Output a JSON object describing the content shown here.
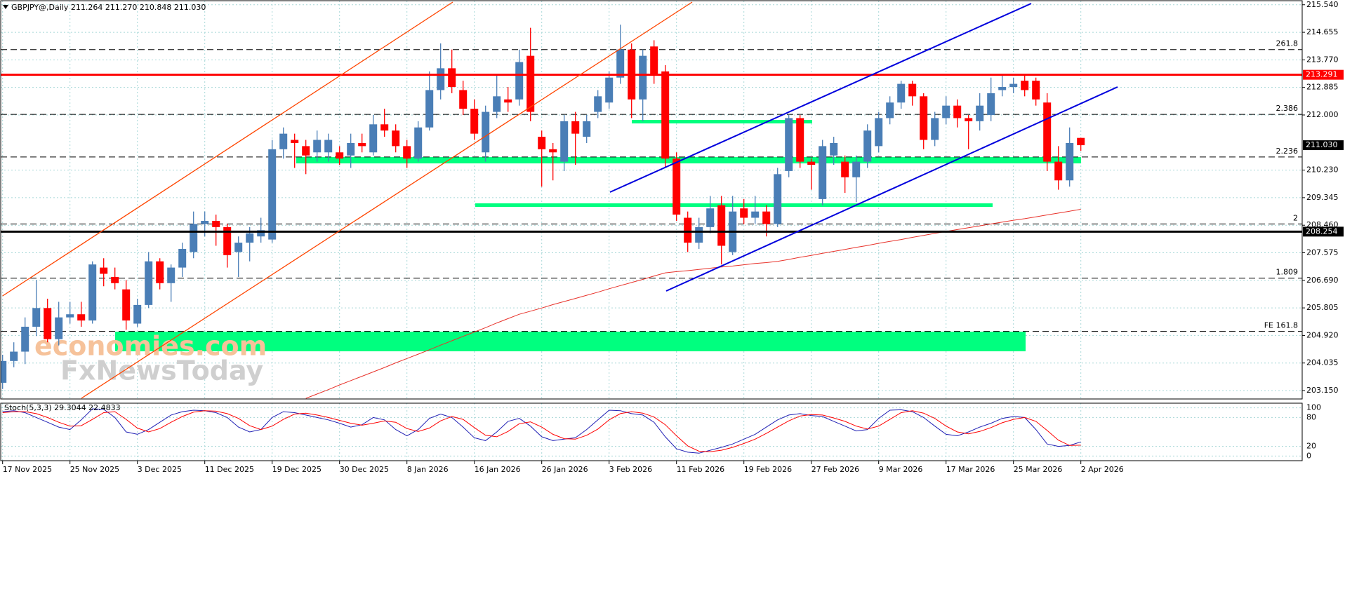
{
  "chart_data": {
    "type": "candlestick",
    "legend_text": "GBPJPY@,Daily  211.264 211.270 210.848 211.030",
    "categories": [
      "17 Nov 2025",
      null,
      null,
      null,
      null,
      null,
      "25 Nov 2025",
      null,
      null,
      null,
      null,
      null,
      "3 Dec 2025",
      null,
      null,
      null,
      null,
      null,
      "11 Dec 2025",
      null,
      null,
      null,
      null,
      null,
      "19 Dec 2025",
      null,
      null,
      null,
      null,
      null,
      "30 Dec 2025",
      null,
      null,
      null,
      null,
      null,
      "8 Jan 2026",
      null,
      null,
      null,
      null,
      null,
      "16 Jan 2026",
      null,
      null,
      null,
      null,
      null,
      "26 Jan 2026",
      null,
      null,
      null,
      null,
      null,
      "3 Feb 2026",
      null,
      null,
      null,
      null,
      null,
      "11 Feb 2026",
      null,
      null,
      null,
      null,
      null,
      "19 Feb 2026",
      null,
      null,
      null,
      null,
      null,
      "27 Feb 2026",
      null,
      null,
      null,
      null,
      null,
      "9 Mar 2026",
      null,
      null,
      null,
      null,
      null,
      "17 Mar 2026",
      null,
      null,
      null,
      null,
      null,
      "25 Mar 2026",
      null,
      null,
      null,
      null,
      null,
      "2 Apr 2026"
    ],
    "open": [
      203.4,
      204.1,
      204.4,
      205.2,
      205.8,
      204.8,
      205.5,
      205.6,
      205.4,
      207.1,
      206.8,
      206.4,
      205.3,
      205.9,
      207.3,
      206.6,
      207.1,
      207.6,
      208.5,
      208.6,
      208.4,
      207.6,
      207.9,
      208.1,
      208.0,
      210.9,
      211.2,
      211.0,
      210.8,
      210.8,
      210.8,
      210.7,
      211.1,
      210.8,
      211.7,
      211.5,
      211.0,
      210.6,
      211.6,
      212.8,
      213.5,
      212.8,
      212.2,
      210.8,
      212.1,
      212.5,
      212.5,
      213.9,
      211.3,
      210.9,
      210.5,
      211.8,
      211.3,
      212.1,
      212.4,
      213.2,
      214.1,
      212.5,
      214.2,
      213.4,
      210.6,
      208.7,
      207.9,
      208.4,
      209.1,
      207.6,
      209.0,
      208.7,
      208.9,
      208.5,
      210.2,
      211.9,
      210.5,
      209.3,
      210.7,
      210.5,
      210.0,
      210.5,
      211.0,
      211.9,
      212.4,
      213.0,
      212.6,
      211.2,
      211.9,
      212.3,
      211.9,
      211.8,
      212.0,
      212.8,
      212.9,
      213.1,
      213.1,
      212.4,
      210.5,
      209.9,
      211.264
    ],
    "high": [
      204.3,
      204.7,
      205.5,
      206.7,
      206.1,
      206.0,
      206.0,
      206.0,
      207.3,
      207.4,
      207.1,
      206.7,
      206.1,
      207.6,
      207.4,
      207.2,
      207.9,
      208.9,
      208.9,
      208.8,
      208.5,
      208.1,
      208.4,
      208.7,
      211.2,
      211.6,
      211.4,
      211.2,
      211.5,
      211.4,
      211.0,
      211.4,
      211.4,
      212.0,
      212.2,
      211.7,
      211.2,
      211.8,
      213.4,
      214.3,
      214.1,
      213.1,
      212.5,
      212.3,
      213.3,
      212.9,
      214.1,
      214.8,
      211.5,
      211.1,
      212.0,
      212.1,
      212.0,
      212.8,
      213.4,
      214.9,
      214.3,
      214.1,
      214.4,
      213.6,
      210.8,
      208.9,
      208.7,
      209.4,
      209.4,
      209.4,
      209.3,
      209.4,
      209.1,
      210.3,
      212.0,
      212.0,
      210.6,
      211.2,
      211.3,
      210.7,
      210.7,
      211.7,
      212.1,
      212.6,
      213.1,
      213.1,
      212.7,
      212.1,
      212.6,
      212.5,
      212.0,
      212.7,
      213.2,
      213.3,
      213.2,
      213.3,
      213.2,
      212.7,
      211.0,
      211.6,
      211.27
    ],
    "low": [
      203.2,
      203.9,
      204.0,
      204.9,
      204.7,
      204.6,
      205.3,
      205.2,
      205.3,
      206.5,
      206.4,
      205.1,
      205.2,
      205.8,
      206.4,
      206.0,
      206.8,
      207.4,
      208.1,
      207.8,
      207.1,
      206.8,
      207.3,
      207.9,
      207.9,
      210.6,
      210.3,
      210.1,
      210.5,
      210.5,
      210.4,
      210.3,
      210.8,
      210.7,
      211.3,
      210.8,
      210.3,
      210.5,
      211.5,
      212.5,
      212.7,
      212.0,
      211.2,
      210.5,
      211.9,
      212.1,
      212.3,
      211.8,
      209.7,
      209.9,
      210.2,
      210.4,
      211.1,
      211.9,
      212.2,
      213.0,
      211.9,
      211.8,
      213.0,
      210.3,
      208.6,
      207.6,
      207.7,
      208.2,
      207.2,
      207.5,
      208.5,
      208.5,
      208.1,
      208.4,
      210.0,
      210.3,
      209.6,
      209.1,
      210.4,
      209.5,
      209.2,
      210.3,
      210.8,
      211.7,
      212.2,
      212.3,
      210.9,
      211.0,
      211.7,
      211.6,
      210.9,
      211.5,
      211.8,
      212.6,
      212.7,
      212.6,
      212.3,
      210.2,
      209.6,
      209.7,
      210.848
    ],
    "close": [
      204.1,
      204.4,
      205.2,
      205.8,
      204.8,
      205.5,
      205.6,
      205.4,
      207.2,
      206.9,
      206.6,
      205.4,
      205.9,
      207.3,
      206.6,
      207.1,
      207.7,
      208.5,
      208.6,
      208.4,
      207.5,
      207.9,
      208.2,
      208.3,
      210.9,
      211.4,
      211.1,
      210.7,
      211.2,
      211.2,
      210.6,
      211.1,
      211.0,
      211.7,
      211.5,
      211.0,
      210.6,
      211.6,
      212.8,
      213.5,
      212.9,
      212.2,
      211.4,
      212.1,
      212.6,
      212.4,
      213.7,
      212.1,
      210.9,
      210.8,
      211.8,
      211.4,
      211.8,
      212.6,
      213.2,
      214.1,
      212.5,
      213.9,
      213.3,
      210.6,
      208.8,
      207.9,
      208.4,
      209.0,
      207.8,
      208.9,
      208.7,
      208.9,
      208.5,
      210.1,
      211.9,
      210.5,
      210.4,
      211.0,
      211.1,
      210.0,
      210.5,
      211.5,
      211.9,
      212.4,
      213.0,
      212.6,
      211.2,
      211.9,
      212.3,
      211.9,
      211.8,
      212.3,
      212.7,
      212.9,
      213.0,
      212.8,
      212.5,
      210.5,
      209.9,
      211.1,
      211.03
    ],
    "up_color": "#4a7eb6",
    "down_color": "#ff0000",
    "ylim": [
      202.88,
      215.67
    ],
    "yticks": [
      {
        "value": 215.54,
        "label": "215.540"
      },
      214.655,
      {
        "value": 213.77,
        "label": "213.770"
      },
      212.885,
      {
        "value": 212,
        "label": "212.000"
      },
      {
        "value": 210.23,
        "label": "210.230"
      },
      209.345,
      {
        "value": 208.46,
        "label": "208.460"
      },
      207.575,
      {
        "value": 206.69,
        "label": "206.690"
      },
      205.805,
      {
        "value": 204.92,
        "label": "204.920"
      },
      204.035,
      {
        "value": 203.15,
        "label": "203.150"
      }
    ],
    "grid": true,
    "ma": {
      "color": "#e8322a",
      "values": [
        null,
        null,
        null,
        null,
        null,
        null,
        null,
        null,
        null,
        null,
        null,
        null,
        null,
        null,
        null,
        null,
        null,
        null,
        null,
        null,
        null,
        null,
        null,
        null,
        null,
        null,
        null,
        202.9,
        203.04,
        203.18,
        203.33,
        203.47,
        203.61,
        203.75,
        203.89,
        204.04,
        204.18,
        204.32,
        204.46,
        204.61,
        204.75,
        204.89,
        205.03,
        205.17,
        205.32,
        205.46,
        205.6,
        205.7,
        205.8,
        205.91,
        206.01,
        206.11,
        206.21,
        206.31,
        206.42,
        206.52,
        206.62,
        206.72,
        206.83,
        206.93,
        206.97,
        207,
        207.04,
        207.08,
        207.12,
        207.15,
        207.19,
        207.23,
        207.26,
        207.3,
        207.36,
        207.43,
        207.49,
        207.56,
        207.62,
        207.68,
        207.75,
        207.81,
        207.88,
        207.94,
        208,
        208.07,
        208.13,
        208.2,
        208.26,
        208.32,
        208.38,
        208.44,
        208.5,
        208.56,
        208.62,
        208.67,
        208.73,
        208.79,
        208.85,
        208.91,
        208.97
      ]
    },
    "hlines": [
      {
        "value": 213.291,
        "color": "#ff0000"
      },
      {
        "value": 208.254,
        "color": "#000000"
      }
    ],
    "current": {
      "value": 211.03,
      "label": "211.030"
    },
    "levels": [
      {
        "label": "261.8",
        "value": 214.1
      },
      {
        "label": "2.386",
        "value": 212.02
      },
      {
        "label": "2.236",
        "value": 210.65
      },
      {
        "label": "2",
        "value": 208.5
      },
      {
        "label": "1.809",
        "value": 206.76
      },
      {
        "label": "FE 161.8",
        "value": 205.05
      }
    ],
    "watermarks": [
      {
        "text": "economies.com",
        "color": "#f6c29a"
      },
      {
        "text": "FxNewsToday",
        "color": "#cfcfcf"
      }
    ],
    "stochastic": {
      "label": "Stoch(5,3,3) 29.3044 22.4833",
      "ylim": [
        -9.6,
        109.6
      ],
      "yticks": [
        100,
        80,
        20,
        0
      ],
      "series": [
        {
          "color": "#1f1fb4",
          "values": [
            92,
            94,
            90,
            80,
            70,
            60,
            55,
            75,
            98,
            97,
            80,
            50,
            45,
            55,
            70,
            85,
            92,
            95,
            94,
            90,
            80,
            60,
            50,
            55,
            80,
            92,
            90,
            85,
            80,
            75,
            68,
            60,
            65,
            80,
            75,
            55,
            42,
            55,
            78,
            87,
            80,
            60,
            38,
            32,
            50,
            72,
            78,
            62,
            40,
            32,
            35,
            38,
            55,
            75,
            95,
            94,
            88,
            85,
            70,
            40,
            15,
            8,
            6,
            12,
            18,
            25,
            35,
            45,
            60,
            75,
            85,
            88,
            84,
            82,
            72,
            62,
            52,
            55,
            78,
            95,
            96,
            92,
            80,
            62,
            45,
            42,
            50,
            60,
            68,
            78,
            82,
            80,
            55,
            25,
            20,
            22,
            29.3044
          ]
        },
        {
          "color": "#ff0000",
          "values": [
            90,
            92,
            92,
            88,
            80,
            70,
            62,
            63,
            76,
            90,
            92,
            76,
            58,
            50,
            57,
            70,
            82,
            91,
            94,
            93,
            88,
            78,
            63,
            55,
            62,
            76,
            87,
            89,
            85,
            80,
            74,
            68,
            64,
            68,
            73,
            70,
            57,
            51,
            58,
            73,
            82,
            76,
            59,
            43,
            40,
            51,
            67,
            71,
            60,
            45,
            36,
            35,
            43,
            56,
            75,
            88,
            92,
            89,
            81,
            65,
            42,
            21,
            10,
            9,
            12,
            18,
            26,
            35,
            47,
            60,
            73,
            83,
            86,
            85,
            79,
            72,
            62,
            56,
            62,
            76,
            90,
            94,
            89,
            78,
            62,
            50,
            46,
            51,
            59,
            69,
            76,
            80,
            72,
            53,
            33,
            22,
            22.4833
          ]
        }
      ]
    }
  }
}
